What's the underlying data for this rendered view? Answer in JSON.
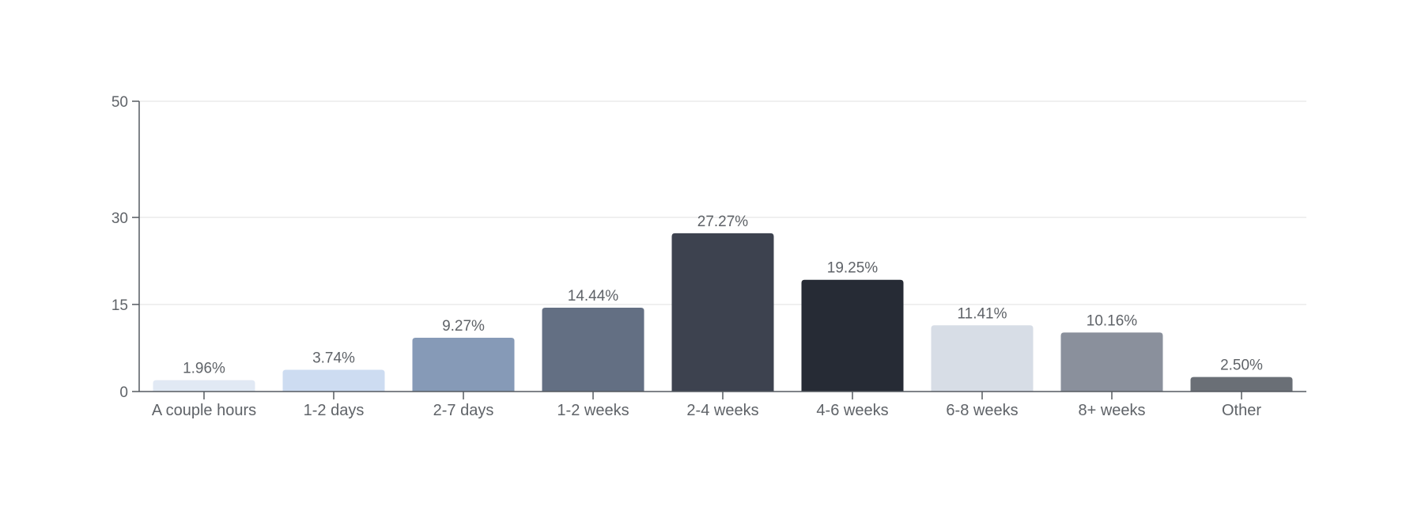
{
  "chart_data": {
    "type": "bar",
    "categories": [
      "A couple hours",
      "1-2 days",
      "2-7 days",
      "1-2 weeks",
      "2-4 weeks",
      "4-6 weeks",
      "6-8 weeks",
      "8+ weeks",
      "Other"
    ],
    "values": [
      1.96,
      3.74,
      9.27,
      14.44,
      27.27,
      19.25,
      11.41,
      10.16,
      2.5
    ],
    "data_labels": [
      "1.96%",
      "3.74%",
      "9.27%",
      "14.44%",
      "27.27%",
      "19.25%",
      "11.41%",
      "10.16%",
      "2.50%"
    ],
    "bar_colors": [
      "#e1e9f4",
      "#cddcf1",
      "#869ab7",
      "#636f83",
      "#3d424f",
      "#262b35",
      "#d7dde6",
      "#8a909c",
      "#6a6f76"
    ],
    "yticks": [
      0,
      15,
      30,
      50
    ],
    "ytick_labels": [
      "0",
      "15",
      "30",
      "50"
    ],
    "ylim": [
      0,
      50
    ],
    "grid": true,
    "legend": "none",
    "title": "",
    "xlabel": "",
    "ylabel": ""
  }
}
